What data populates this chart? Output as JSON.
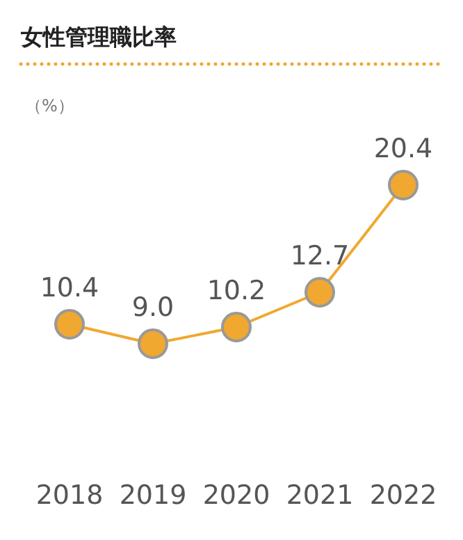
{
  "chart_data": {
    "type": "line",
    "title": "女性管理職比率",
    "ylabel": "（%）",
    "categories": [
      "2018",
      "2019",
      "2020",
      "2021",
      "2022"
    ],
    "series": [
      {
        "color": "#f0a830",
        "values": [
          10.4,
          9.0,
          10.2,
          12.7,
          20.4
        ],
        "value_labels": [
          "10.4",
          "9.0",
          "10.2",
          "12.7",
          "20.4"
        ]
      }
    ],
    "marker": "circle",
    "line_style": "solid"
  }
}
